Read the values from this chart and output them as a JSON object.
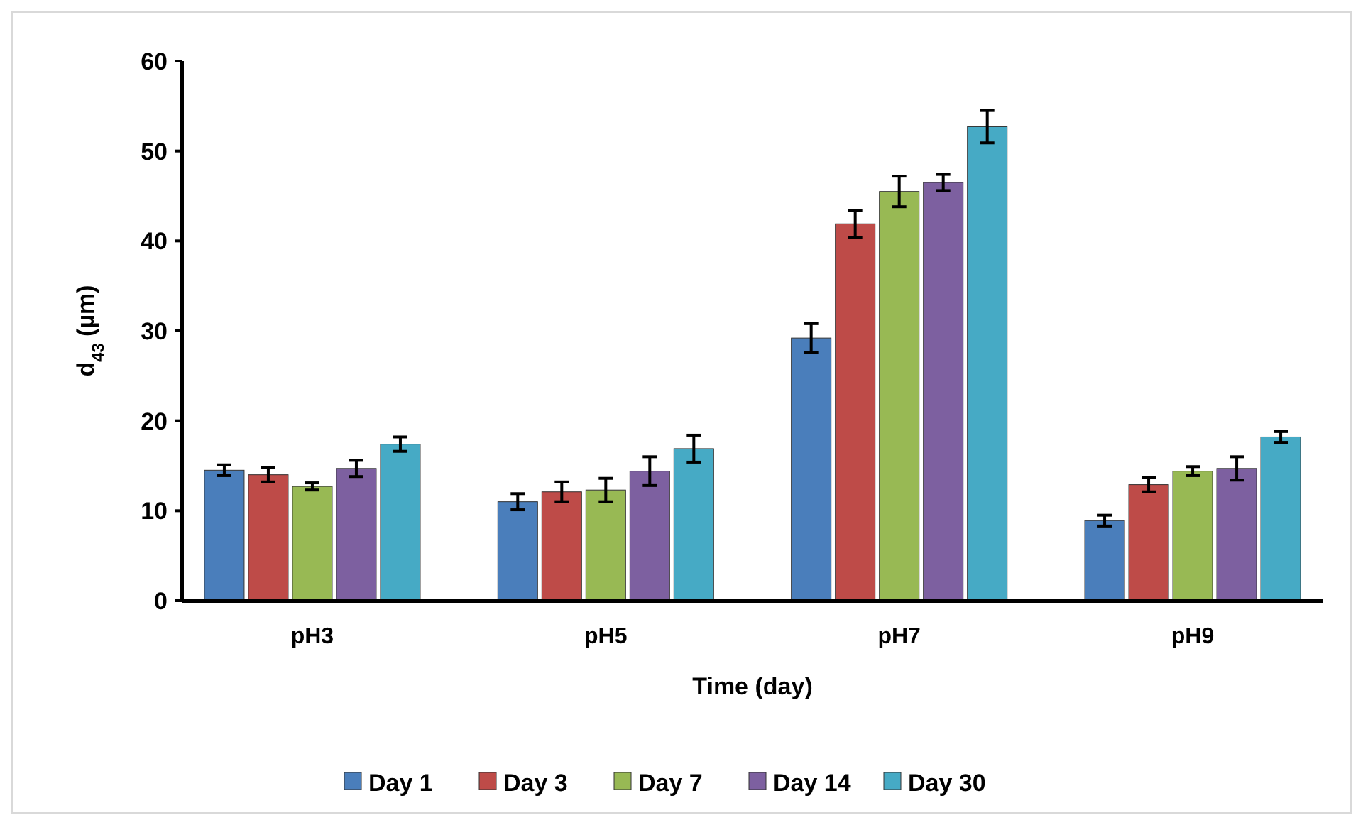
{
  "chart_data": {
    "type": "bar",
    "xlabel": "Time (day)",
    "ylabel": "d$_{43}$ (µm)",
    "categories": [
      "pH3",
      "pH5",
      "pH7",
      "pH9"
    ],
    "ylim": [
      0,
      60
    ],
    "yticks": [
      0,
      10,
      20,
      30,
      40,
      50,
      60
    ],
    "grid": false,
    "legend": "bottom",
    "series": [
      {
        "name": "Day 1",
        "color": "#4a7ebb",
        "values": [
          14.5,
          11.0,
          29.2,
          8.9
        ],
        "errors": [
          0.6,
          0.9,
          1.6,
          0.6
        ]
      },
      {
        "name": "Day 3",
        "color": "#be4b48",
        "values": [
          14.0,
          12.1,
          41.9,
          12.9
        ],
        "errors": [
          0.8,
          1.1,
          1.5,
          0.8
        ]
      },
      {
        "name": "Day 7",
        "color": "#98b954",
        "values": [
          12.7,
          12.3,
          45.5,
          14.4
        ],
        "errors": [
          0.4,
          1.3,
          1.7,
          0.5
        ]
      },
      {
        "name": "Day 14",
        "color": "#7d60a0",
        "values": [
          14.7,
          14.4,
          46.5,
          14.7
        ],
        "errors": [
          0.9,
          1.6,
          0.9,
          1.3
        ]
      },
      {
        "name": "Day 30",
        "color": "#46aac5",
        "values": [
          17.4,
          16.9,
          52.7,
          18.2
        ],
        "errors": [
          0.8,
          1.5,
          1.8,
          0.6
        ]
      }
    ]
  }
}
